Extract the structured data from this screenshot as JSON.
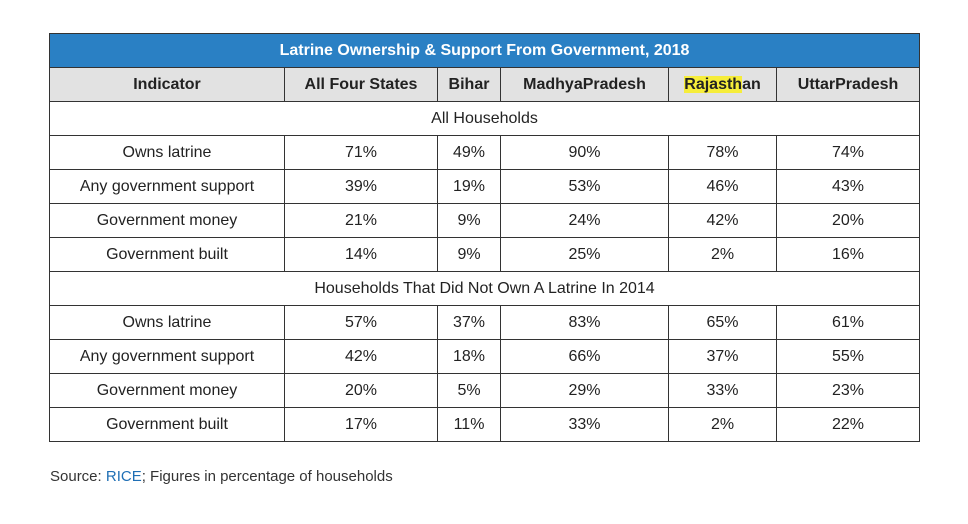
{
  "title": "Latrine Ownership & Support From Government, 2018",
  "headers": {
    "indicator": "Indicator",
    "all": "All Four States",
    "bihar": "Bihar",
    "mp": "MadhyaPradesh",
    "raj_highlight": "Rajasth",
    "raj_rest": "an",
    "up": "UttarPradesh"
  },
  "sections": [
    {
      "label": "All Households",
      "rows": [
        [
          "Owns latrine",
          "71%",
          "49%",
          "90%",
          "78%",
          "74%"
        ],
        [
          "Any government support",
          "39%",
          "19%",
          "53%",
          "46%",
          "43%"
        ],
        [
          "Government money",
          "21%",
          "9%",
          "24%",
          "42%",
          "20%"
        ],
        [
          "Government built",
          "14%",
          "9%",
          "25%",
          "2%",
          "16%"
        ]
      ]
    },
    {
      "label": "Households That Did Not Own A Latrine In 2014",
      "rows": [
        [
          "Owns latrine",
          "57%",
          "37%",
          "83%",
          "65%",
          "61%"
        ],
        [
          "Any government support",
          "42%",
          "18%",
          "66%",
          "37%",
          "55%"
        ],
        [
          "Government money",
          "20%",
          "5%",
          "29%",
          "33%",
          "23%"
        ],
        [
          "Government built",
          "17%",
          "11%",
          "33%",
          "2%",
          "22%"
        ]
      ]
    }
  ],
  "source": {
    "prefix": "Source: ",
    "link": "RICE",
    "suffix": "; Figures in percentage of households"
  },
  "colors": {
    "title_bg": "#2a80c4",
    "header_bg": "#e2e2e2",
    "highlight": "#f6ed3a",
    "link": "#1f6fb5"
  }
}
